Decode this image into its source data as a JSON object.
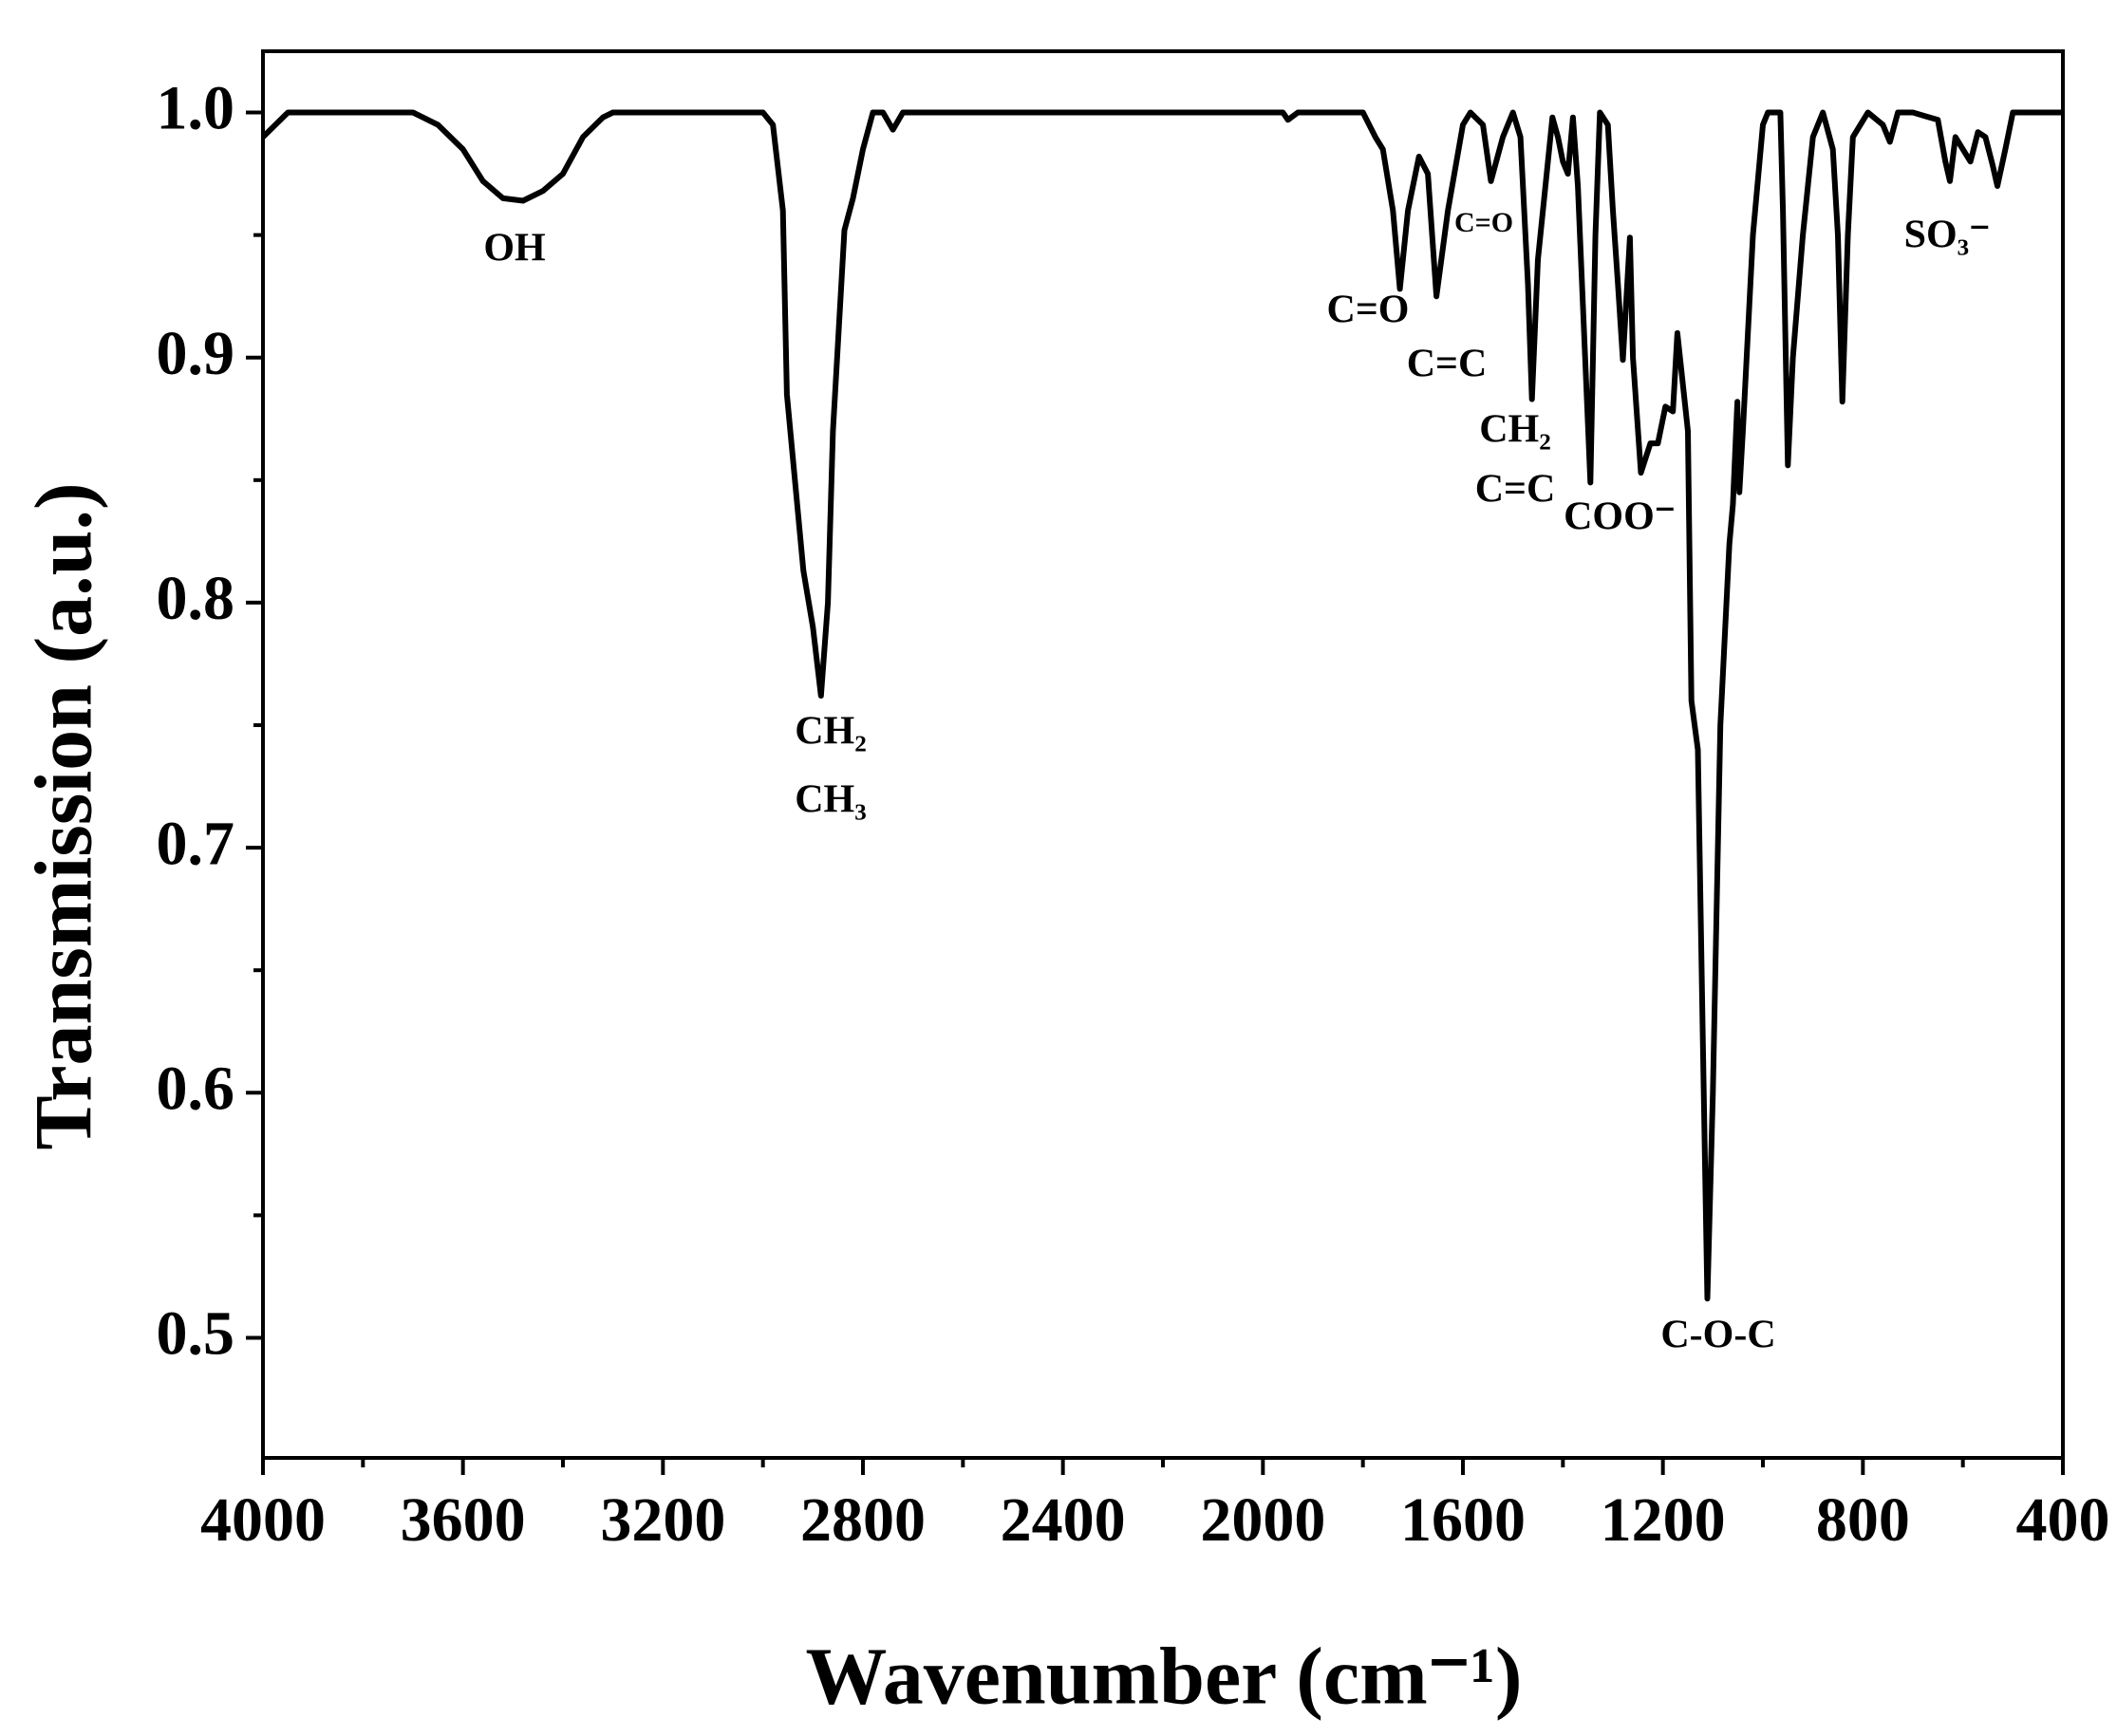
{
  "chart_data": {
    "type": "line",
    "x_label": "Wavenumber (cm⁻¹)",
    "y_label": "Transmission (a.u.)",
    "annotations": [
      "OH",
      "CH₂",
      "CH₃",
      "C=O",
      "C=C",
      "C=O",
      "CH₂",
      "C=C",
      "COO⁻",
      "C-O-C",
      "SO₃⁻"
    ],
    "color": "#000000",
    "xlim": [
      4000,
      400
    ],
    "xticks": [
      4000,
      3600,
      3200,
      2800,
      2400,
      2000,
      1600,
      1200,
      800,
      400
    ],
    "ylim": [
      0.451,
      1.025
    ],
    "yticks": [
      0.5,
      0.6,
      0.7,
      0.8,
      0.9,
      {
        "value": 1,
        "label": "1.0"
      }
    ],
    "x": [
      4000,
      3950,
      3700,
      3650,
      3600,
      3560,
      3520,
      3480,
      3440,
      3400,
      3360,
      3320,
      3300,
      3000,
      2980,
      2960,
      2952,
      2919,
      2900,
      2884,
      2870,
      2860,
      2837,
      2820,
      2800,
      2780,
      2760,
      2740,
      2720,
      1960,
      1950,
      1930,
      1800,
      1775,
      1760,
      1740,
      1726,
      1710,
      1688,
      1670,
      1653,
      1630,
      1600,
      1585,
      1560,
      1544,
      1520,
      1500,
      1485,
      1470,
      1462,
      1450,
      1421,
      1410,
      1400,
      1390,
      1380,
      1370,
      1345,
      1335,
      1326,
      1310,
      1300,
      1290,
      1280,
      1266,
      1260,
      1244,
      1225,
      1210,
      1195,
      1180,
      1171,
      1150,
      1143,
      1130,
      1120,
      1111,
      1100,
      1085,
      1067,
      1060,
      1051,
      1047,
      1040,
      1020,
      1000,
      990,
      965,
      960,
      950,
      940,
      920,
      900,
      880,
      860,
      850,
      841,
      830,
      820,
      790,
      760,
      746,
      730,
      700,
      650,
      635,
      626,
      615,
      600,
      585,
      570,
      555,
      540,
      531,
      515,
      500,
      400
    ],
    "y": [
      0.99,
      1.0,
      1.0,
      0.995,
      0.985,
      0.972,
      0.965,
      0.964,
      0.968,
      0.975,
      0.99,
      0.998,
      1.0,
      1.0,
      0.995,
      0.96,
      0.885,
      0.813,
      0.79,
      0.762,
      0.8,
      0.87,
      0.952,
      0.965,
      0.985,
      1.0,
      1.0,
      0.993,
      1.0,
      1.0,
      0.997,
      1.0,
      1.0,
      0.99,
      0.985,
      0.96,
      0.928,
      0.96,
      0.982,
      0.975,
      0.925,
      0.96,
      0.995,
      1.0,
      0.995,
      0.972,
      0.99,
      1.0,
      0.99,
      0.93,
      0.883,
      0.94,
      0.998,
      0.99,
      0.98,
      0.975,
      0.998,
      0.97,
      0.849,
      0.95,
      1.0,
      0.995,
      0.96,
      0.93,
      0.899,
      0.949,
      0.9,
      0.853,
      0.865,
      0.865,
      0.88,
      0.878,
      0.91,
      0.87,
      0.76,
      0.74,
      0.62,
      0.516,
      0.6,
      0.75,
      0.824,
      0.84,
      0.882,
      0.845,
      0.87,
      0.95,
      0.995,
      1.0,
      1.0,
      0.96,
      0.856,
      0.9,
      0.95,
      0.99,
      1.0,
      0.985,
      0.95,
      0.882,
      0.95,
      0.99,
      1.0,
      0.995,
      0.988,
      1.0,
      1.0,
      0.997,
      0.98,
      0.972,
      0.99,
      0.985,
      0.98,
      0.992,
      0.99,
      0.978,
      0.97,
      0.985,
      1.0,
      1.0
    ]
  }
}
